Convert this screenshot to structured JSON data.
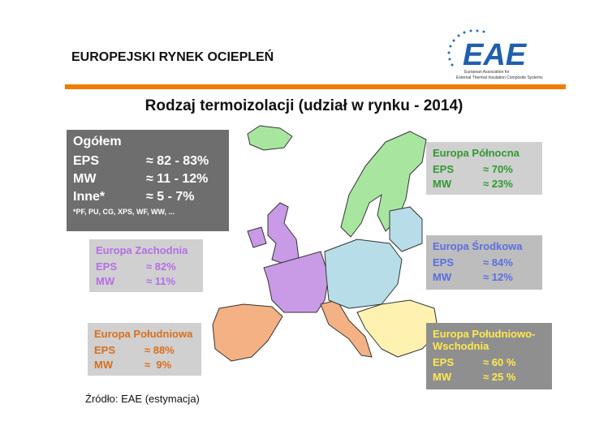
{
  "header": {
    "title": "EUROPEJSKI RYNEK OCIEPLEŃ",
    "logo": "EAE",
    "logo_subtitle": [
      "European Association for",
      "External Thermal Insulation Composite Systems"
    ]
  },
  "slide_title": "Rodzaj termoizolacji (udział w rynku - 2014)",
  "summary": {
    "title": "Ogółem",
    "rows": [
      [
        "EPS",
        "≈ 82 - 83%"
      ],
      [
        "MW",
        "≈ 11 - 12%"
      ],
      [
        "Inne*",
        "≈ 5 - 7%"
      ]
    ],
    "footnote": "*PF, PU, CG, XPS, WF, WW, ..."
  },
  "regions": [
    {
      "title": "Europa Północna",
      "rows": [
        [
          "EPS",
          "≈ 70%"
        ],
        [
          "MW",
          "≈ 23%"
        ]
      ]
    },
    {
      "title": "Europa Zachodnia",
      "rows": [
        [
          "EPS",
          "≈ 82%"
        ],
        [
          "MW",
          "≈ 11%"
        ]
      ]
    },
    {
      "title": "Europa Środkowa",
      "rows": [
        [
          "EPS",
          "≈ 84%"
        ],
        [
          "MW",
          "≈ 12%"
        ]
      ]
    },
    {
      "title": "Europa Południowa",
      "rows": [
        [
          "EPS",
          "≈ 88%"
        ],
        [
          "MW",
          "≈  9%"
        ]
      ]
    },
    {
      "title": "Europa Południowo-Wschodnia",
      "rows": [
        [
          "EPS",
          "≈ 60 %"
        ],
        [
          "MW",
          "≈ 25 %"
        ]
      ]
    }
  ],
  "source": "Źródło: EAE (estymacja)"
}
